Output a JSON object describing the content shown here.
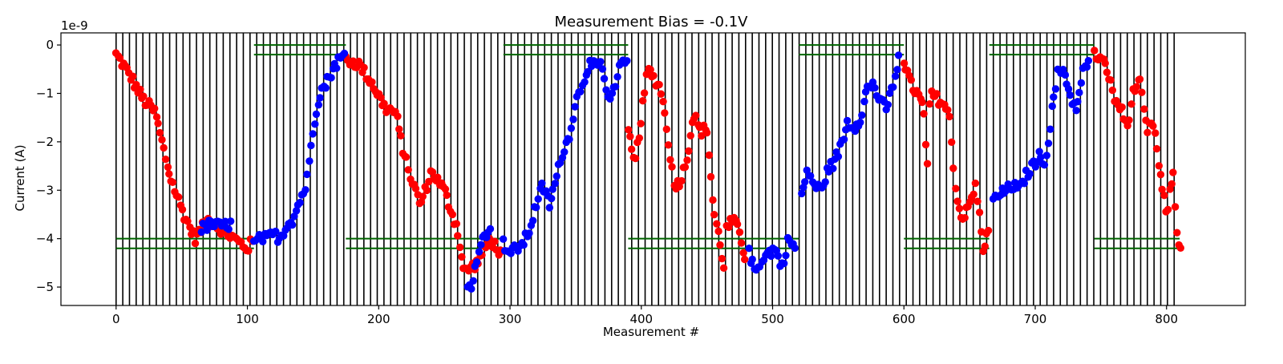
{
  "chart_data": {
    "type": "scatter",
    "title": "Measurement Bias = -0.1V",
    "xlabel": "Measurement #",
    "ylabel": "Current (A)",
    "y_scale_label": "1e-9",
    "xlim": [
      -42,
      860
    ],
    "ylim": [
      -5.38,
      0.25
    ],
    "x_ticks": [
      0,
      100,
      200,
      300,
      400,
      500,
      600,
      700,
      800
    ],
    "x_tick_labels": [
      "0",
      "100",
      "200",
      "300",
      "400",
      "500",
      "600",
      "700",
      "800"
    ],
    "y_ticks": [
      0,
      -1,
      -2,
      -3,
      -4,
      -5
    ],
    "y_tick_labels": [
      "0",
      "−1",
      "−2",
      "−3",
      "−4",
      "−5"
    ],
    "grid": false,
    "legend": "none",
    "colors": {
      "red_series": "#ff0000",
      "blue_series": "#0000ff",
      "vertical_lines": "#000000",
      "reference_lines": "#006400"
    },
    "vertical_lines": {
      "start": 0,
      "end": 810,
      "spacing": 5.1
    },
    "reference_segments": [
      {
        "x": [
          0,
          105
        ],
        "y": [
          -4.0,
          -4.2
        ]
      },
      {
        "x": [
          105,
          175
        ],
        "y": [
          0.0,
          -0.2
        ]
      },
      {
        "x": [
          175,
          295
        ],
        "y": [
          -4.0,
          -4.2
        ]
      },
      {
        "x": [
          295,
          390
        ],
        "y": [
          0.0,
          -0.2
        ]
      },
      {
        "x": [
          390,
          520
        ],
        "y": [
          -4.0,
          -4.2
        ]
      },
      {
        "x": [
          520,
          600
        ],
        "y": [
          0.0,
          -0.2
        ]
      },
      {
        "x": [
          600,
          665
        ],
        "y": [
          -4.0,
          -4.2
        ]
      },
      {
        "x": [
          665,
          745
        ],
        "y": [
          0.0,
          -0.2
        ]
      },
      {
        "x": [
          745,
          810
        ],
        "y": [
          -4.0,
          -4.2
        ]
      }
    ],
    "series": [
      {
        "color": "red",
        "segments": [
          {
            "x0": 0,
            "x1": 105,
            "points": [
              [
                0,
                -0.2
              ],
              [
                10,
                -0.6
              ],
              [
                20,
                -1.1
              ],
              [
                30,
                -1.4
              ],
              [
                40,
                -2.6
              ],
              [
                50,
                -3.4
              ],
              [
                60,
                -4.0
              ],
              [
                70,
                -3.6
              ],
              [
                80,
                -3.8
              ],
              [
                90,
                -4.0
              ],
              [
                100,
                -4.2
              ],
              [
                105,
                -4.0
              ]
            ]
          },
          {
            "x0": 175,
            "x1": 295,
            "points": [
              [
                175,
                -0.3
              ],
              [
                185,
                -0.4
              ],
              [
                195,
                -0.8
              ],
              [
                205,
                -1.3
              ],
              [
                213,
                -1.4
              ],
              [
                218,
                -2.1
              ],
              [
                225,
                -2.8
              ],
              [
                232,
                -3.3
              ],
              [
                240,
                -2.6
              ],
              [
                250,
                -3.0
              ],
              [
                260,
                -3.8
              ],
              [
                265,
                -4.7
              ],
              [
                275,
                -4.5
              ],
              [
                285,
                -4.0
              ],
              [
                295,
                -4.4
              ]
            ]
          },
          {
            "x0": 390,
            "x1": 460,
            "points": [
              [
                390,
                -1.8
              ],
              [
                395,
                -2.5
              ],
              [
                400,
                -1.5
              ],
              [
                405,
                -0.5
              ],
              [
                410,
                -0.7
              ],
              [
                415,
                -0.9
              ],
              [
                420,
                -1.8
              ],
              [
                425,
                -2.9
              ],
              [
                430,
                -2.8
              ],
              [
                435,
                -2.3
              ],
              [
                440,
                -1.4
              ],
              [
                445,
                -1.8
              ],
              [
                450,
                -1.7
              ],
              [
                455,
                -3.4
              ],
              [
                460,
                -4.1
              ],
              [
                463,
                -4.6
              ]
            ]
          },
          {
            "x0": 460,
            "x1": 480,
            "points": [
              [
                465,
                -3.8
              ],
              [
                470,
                -3.6
              ],
              [
                475,
                -3.9
              ],
              [
                480,
                -4.5
              ]
            ]
          },
          {
            "x0": 600,
            "x1": 665,
            "points": [
              [
                600,
                -0.3
              ],
              [
                605,
                -0.8
              ],
              [
                610,
                -1.0
              ],
              [
                615,
                -1.3
              ],
              [
                618,
                -2.6
              ],
              [
                620,
                -1.0
              ],
              [
                625,
                -1.1
              ],
              [
                630,
                -1.2
              ],
              [
                635,
                -1.5
              ],
              [
                640,
                -3.2
              ],
              [
                645,
                -3.6
              ],
              [
                650,
                -3.3
              ],
              [
                655,
                -2.9
              ],
              [
                660,
                -4.2
              ],
              [
                665,
                -3.8
              ]
            ]
          },
          {
            "x0": 745,
            "x1": 815,
            "points": [
              [
                745,
                -0.2
              ],
              [
                750,
                -0.3
              ],
              [
                755,
                -0.5
              ],
              [
                760,
                -1.1
              ],
              [
                765,
                -1.3
              ],
              [
                770,
                -1.7
              ],
              [
                775,
                -0.9
              ],
              [
                780,
                -0.8
              ],
              [
                785,
                -1.8
              ],
              [
                790,
                -1.6
              ],
              [
                795,
                -2.7
              ],
              [
                800,
                -3.5
              ],
              [
                805,
                -2.6
              ],
              [
                808,
                -3.9
              ],
              [
                812,
                -4.3
              ]
            ]
          }
        ]
      },
      {
        "color": "blue",
        "segments": [
          {
            "x0": 65,
            "x1": 90,
            "points": [
              [
                65,
                -3.8
              ],
              [
                72,
                -3.7
              ],
              [
                80,
                -3.75
              ],
              [
                88,
                -3.7
              ]
            ]
          },
          {
            "x0": 105,
            "x1": 175,
            "points": [
              [
                105,
                -4.1
              ],
              [
                110,
                -4.0
              ],
              [
                115,
                -4.0
              ],
              [
                120,
                -3.9
              ],
              [
                125,
                -4.0
              ],
              [
                130,
                -3.7
              ],
              [
                135,
                -3.6
              ],
              [
                140,
                -3.2
              ],
              [
                145,
                -2.9
              ],
              [
                150,
                -1.7
              ],
              [
                155,
                -1.0
              ],
              [
                160,
                -0.8
              ],
              [
                165,
                -0.5
              ],
              [
                170,
                -0.3
              ],
              [
                175,
                -0.2
              ]
            ]
          },
          {
            "x0": 265,
            "x1": 295,
            "points": [
              [
                268,
                -5.0
              ],
              [
                272,
                -4.9
              ],
              [
                276,
                -4.2
              ],
              [
                280,
                -4.0
              ],
              [
                285,
                -3.7
              ]
            ]
          },
          {
            "x0": 295,
            "x1": 390,
            "points": [
              [
                295,
                -4.1
              ],
              [
                300,
                -4.3
              ],
              [
                305,
                -4.2
              ],
              [
                310,
                -4.1
              ],
              [
                315,
                -3.8
              ],
              [
                320,
                -3.3
              ],
              [
                325,
                -2.9
              ],
              [
                330,
                -3.3
              ],
              [
                335,
                -2.8
              ],
              [
                340,
                -2.2
              ],
              [
                345,
                -1.9
              ],
              [
                350,
                -1.2
              ],
              [
                355,
                -0.8
              ],
              [
                360,
                -0.4
              ],
              [
                365,
                -0.45
              ],
              [
                370,
                -0.4
              ],
              [
                375,
                -1.2
              ],
              [
                380,
                -0.9
              ],
              [
                385,
                -0.3
              ],
              [
                390,
                -0.25
              ]
            ]
          },
          {
            "x0": 480,
            "x1": 520,
            "points": [
              [
                482,
                -4.3
              ],
              [
                487,
                -4.7
              ],
              [
                492,
                -4.4
              ],
              [
                497,
                -4.3
              ],
              [
                502,
                -4.2
              ],
              [
                507,
                -4.6
              ],
              [
                512,
                -4.0
              ],
              [
                517,
                -4.2
              ]
            ]
          },
          {
            "x0": 520,
            "x1": 600,
            "points": [
              [
                522,
                -3.1
              ],
              [
                527,
                -2.6
              ],
              [
                532,
                -2.9
              ],
              [
                537,
                -3.0
              ],
              [
                542,
                -2.6
              ],
              [
                547,
                -2.4
              ],
              [
                552,
                -2.1
              ],
              [
                557,
                -1.6
              ],
              [
                562,
                -1.7
              ],
              [
                567,
                -1.5
              ],
              [
                572,
                -0.9
              ],
              [
                577,
                -0.8
              ],
              [
                582,
                -1.2
              ],
              [
                587,
                -1.3
              ],
              [
                592,
                -0.8
              ],
              [
                597,
                -0.2
              ]
            ]
          },
          {
            "x0": 665,
            "x1": 745,
            "points": [
              [
                668,
                -3.2
              ],
              [
                673,
                -3.1
              ],
              [
                678,
                -3.0
              ],
              [
                683,
                -2.9
              ],
              [
                688,
                -3.0
              ],
              [
                693,
                -2.7
              ],
              [
                698,
                -2.5
              ],
              [
                703,
                -2.3
              ],
              [
                708,
                -2.4
              ],
              [
                712,
                -1.5
              ],
              [
                717,
                -0.6
              ],
              [
                722,
                -0.5
              ],
              [
                727,
                -1.1
              ],
              [
                732,
                -1.3
              ],
              [
                737,
                -0.5
              ],
              [
                742,
                -0.3
              ]
            ]
          }
        ]
      }
    ]
  }
}
